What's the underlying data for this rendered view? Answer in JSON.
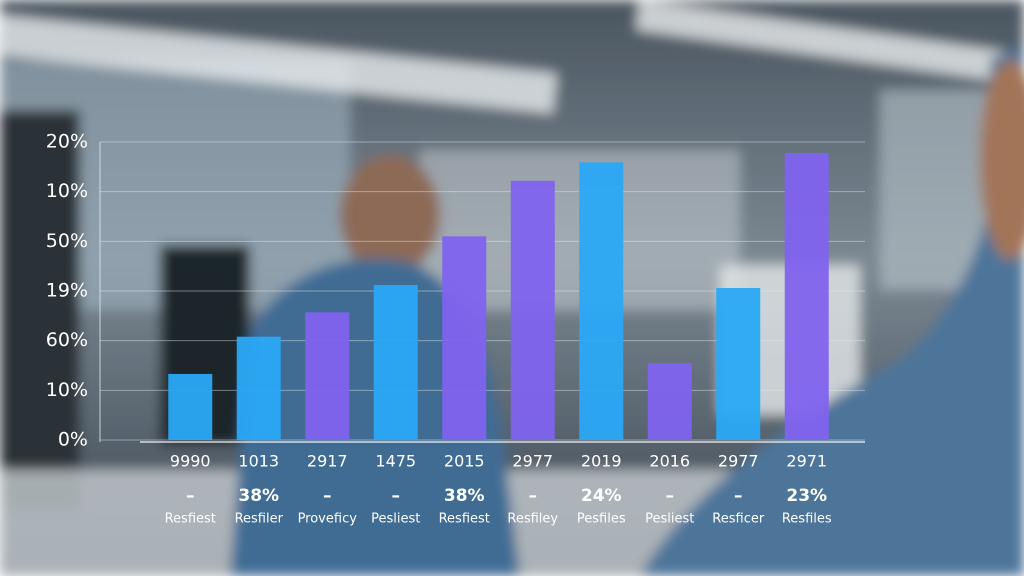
{
  "chart_data": {
    "type": "bar",
    "categories": [
      "9990",
      "1013",
      "2917",
      "1475",
      "2015",
      "2977",
      "2019",
      "2016",
      "2977",
      "2971"
    ],
    "values": [
      1.33,
      2.08,
      2.57,
      3.12,
      4.1,
      5.22,
      5.59,
      1.55,
      3.06,
      5.78
    ],
    "colors": [
      "#2aa8f6",
      "#2aa8f6",
      "#7f63ee",
      "#2aa8f6",
      "#7f63ee",
      "#7f63ee",
      "#2aa8f6",
      "#7f63ee",
      "#2aa8f6",
      "#7f63ee"
    ],
    "sublabels": [
      "–",
      "38%",
      "–",
      "–",
      "38%",
      "–",
      "24%",
      "–",
      "–",
      "23%"
    ],
    "captions": [
      "Resfiest",
      "Resfiler",
      "Proveficy",
      "Pesliest",
      "Resfiest",
      "Resfiley",
      "Pesfiles",
      "Pesliest",
      "Resficer",
      "Resfiles"
    ],
    "ylim": [
      0,
      6
    ],
    "yticks": [
      {
        "value": 0,
        "label": "0%"
      },
      {
        "value": 1,
        "label": "10%"
      },
      {
        "value": 2,
        "label": "60%"
      },
      {
        "value": 3,
        "label": "19%"
      },
      {
        "value": 4,
        "label": "50%"
      },
      {
        "value": 5,
        "label": "10%"
      },
      {
        "value": 6,
        "label": "20%"
      }
    ],
    "grid": true
  }
}
